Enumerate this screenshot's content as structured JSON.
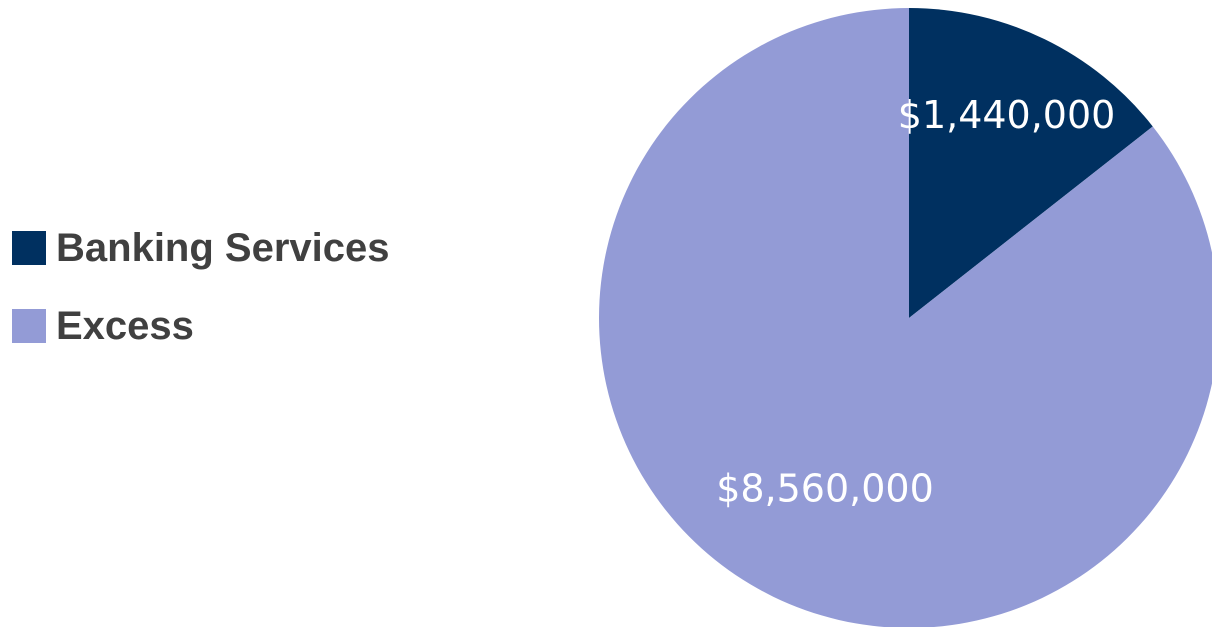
{
  "chart_data": {
    "type": "pie",
    "categories": [
      "Banking Services",
      "Excess"
    ],
    "values": [
      1440000,
      8560000
    ],
    "labels": [
      "$1,440,000",
      "$8,560,000"
    ],
    "colors": [
      "#003060",
      "#939bd6"
    ],
    "start_angle_deg": 0,
    "direction": "clockwise",
    "legend_position": "left"
  },
  "legend": {
    "items": [
      {
        "label": "Banking Services",
        "color": "#003060"
      },
      {
        "label": "Excess",
        "color": "#939bd6"
      }
    ]
  }
}
